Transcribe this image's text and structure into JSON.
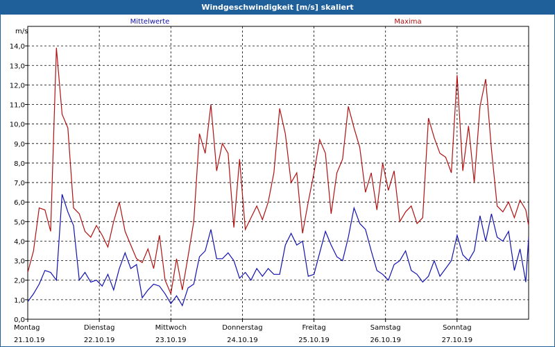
{
  "window": {
    "title": "Windgeschwindigkeit [m/s] skaliert"
  },
  "chart_data": {
    "type": "line",
    "title": "Windgeschwindigkeit [m/s] skaliert",
    "ylabel": "m/s",
    "ylim": [
      0,
      15
    ],
    "yticks": [
      "0,0",
      "1,0",
      "2,0",
      "3,0",
      "4,0",
      "5,0",
      "6,0",
      "7,0",
      "8,0",
      "9,0",
      "10,0",
      "11,0",
      "12,0",
      "13,0",
      "14,0"
    ],
    "xlim": [
      0,
      7
    ],
    "xticks": [
      {
        "day": "Montag",
        "date": "21.10.19"
      },
      {
        "day": "Dienstag",
        "date": "22.10.19"
      },
      {
        "day": "Mittwoch",
        "date": "23.10.19"
      },
      {
        "day": "Donnerstag",
        "date": "24.10.19"
      },
      {
        "day": "Freitag",
        "date": "25.10.19"
      },
      {
        "day": "Samstag",
        "date": "26.10.19"
      },
      {
        "day": "Sonntag",
        "date": "27.10.19"
      }
    ],
    "grid": true,
    "series": [
      {
        "name": "Mittelwerte",
        "color": "#1010b0",
        "x": [
          0,
          0.08,
          0.16,
          0.24,
          0.32,
          0.4,
          0.48,
          0.56,
          0.64,
          0.72,
          0.8,
          0.88,
          0.96,
          1.04,
          1.12,
          1.2,
          1.28,
          1.36,
          1.44,
          1.52,
          1.6,
          1.68,
          1.76,
          1.84,
          1.92,
          2.0,
          2.08,
          2.16,
          2.24,
          2.32,
          2.4,
          2.48,
          2.56,
          2.64,
          2.72,
          2.8,
          2.88,
          2.96,
          3.04,
          3.12,
          3.2,
          3.28,
          3.36,
          3.44,
          3.52,
          3.6,
          3.68,
          3.76,
          3.84,
          3.92,
          4.0,
          4.08,
          4.16,
          4.24,
          4.32,
          4.4,
          4.48,
          4.56,
          4.64,
          4.72,
          4.8,
          4.88,
          4.96,
          5.04,
          5.12,
          5.2,
          5.28,
          5.36,
          5.44,
          5.52,
          5.6,
          5.68,
          5.76,
          5.84,
          5.92,
          6.0,
          6.08,
          6.16,
          6.24,
          6.32,
          6.4,
          6.48,
          6.56,
          6.64,
          6.72,
          6.8,
          6.88,
          6.96,
          7.0
        ],
        "values": [
          0.9,
          1.3,
          1.8,
          2.5,
          2.4,
          2.0,
          6.4,
          5.5,
          4.8,
          2.0,
          2.4,
          1.9,
          2.0,
          1.7,
          2.3,
          1.5,
          2.6,
          3.4,
          2.6,
          2.8,
          1.1,
          1.5,
          1.8,
          1.7,
          1.3,
          0.8,
          1.2,
          0.7,
          1.6,
          1.8,
          3.2,
          3.5,
          4.6,
          3.1,
          3.1,
          3.4,
          3.0,
          2.1,
          2.4,
          2.0,
          2.6,
          2.2,
          2.6,
          2.3,
          2.3,
          3.8,
          4.4,
          3.8,
          4.0,
          2.2,
          2.3,
          3.4,
          4.5,
          3.8,
          3.2,
          3.0,
          4.2,
          5.7,
          4.9,
          4.6,
          3.5,
          2.5,
          2.3,
          2.0,
          2.8,
          3.0,
          3.5,
          2.5,
          2.3,
          1.9,
          2.2,
          3.0,
          2.2,
          2.6,
          3.0,
          4.3,
          3.3,
          3.0,
          3.5,
          5.3,
          4.0,
          5.4,
          4.2,
          4.0,
          4.5,
          2.5,
          3.6,
          1.9,
          4.2
        ]
      },
      {
        "name": "Maxima",
        "color": "#b01010",
        "x": [
          0,
          0.08,
          0.16,
          0.24,
          0.32,
          0.4,
          0.48,
          0.56,
          0.64,
          0.72,
          0.8,
          0.88,
          0.96,
          1.04,
          1.12,
          1.2,
          1.28,
          1.36,
          1.44,
          1.52,
          1.6,
          1.68,
          1.76,
          1.84,
          1.92,
          2.0,
          2.08,
          2.16,
          2.24,
          2.32,
          2.4,
          2.48,
          2.56,
          2.64,
          2.72,
          2.8,
          2.88,
          2.96,
          3.04,
          3.12,
          3.2,
          3.28,
          3.36,
          3.44,
          3.52,
          3.6,
          3.68,
          3.76,
          3.84,
          3.92,
          4.0,
          4.08,
          4.16,
          4.24,
          4.32,
          4.4,
          4.48,
          4.56,
          4.64,
          4.72,
          4.8,
          4.88,
          4.96,
          5.04,
          5.12,
          5.2,
          5.28,
          5.36,
          5.44,
          5.52,
          5.6,
          5.68,
          5.76,
          5.84,
          5.92,
          6.0,
          6.08,
          6.16,
          6.24,
          6.32,
          6.4,
          6.48,
          6.56,
          6.64,
          6.72,
          6.8,
          6.88,
          6.96,
          7.0
        ],
        "values": [
          2.4,
          3.5,
          5.7,
          5.6,
          4.5,
          13.9,
          10.5,
          9.8,
          5.7,
          5.4,
          4.5,
          4.2,
          4.8,
          4.3,
          3.7,
          5.0,
          6.0,
          4.5,
          3.8,
          3.1,
          2.9,
          3.6,
          2.6,
          4.3,
          2.0,
          1.3,
          3.1,
          1.5,
          3.2,
          5.0,
          9.5,
          8.5,
          11.0,
          7.6,
          9.0,
          8.5,
          4.7,
          8.2,
          4.6,
          5.2,
          5.8,
          5.1,
          6.0,
          7.5,
          10.8,
          9.5,
          7.0,
          7.5,
          4.4,
          6.0,
          7.5,
          9.2,
          8.5,
          5.4,
          7.5,
          8.2,
          10.9,
          9.8,
          8.8,
          6.5,
          7.5,
          5.6,
          8.0,
          6.6,
          7.6,
          5.0,
          5.5,
          5.8,
          4.9,
          5.2,
          10.3,
          9.3,
          8.5,
          8.3,
          7.5,
          12.5,
          7.6,
          9.9,
          7.0,
          10.9,
          12.3,
          8.7,
          5.8,
          5.5,
          6.0,
          5.2,
          6.1,
          5.6,
          4.8
        ]
      }
    ]
  }
}
